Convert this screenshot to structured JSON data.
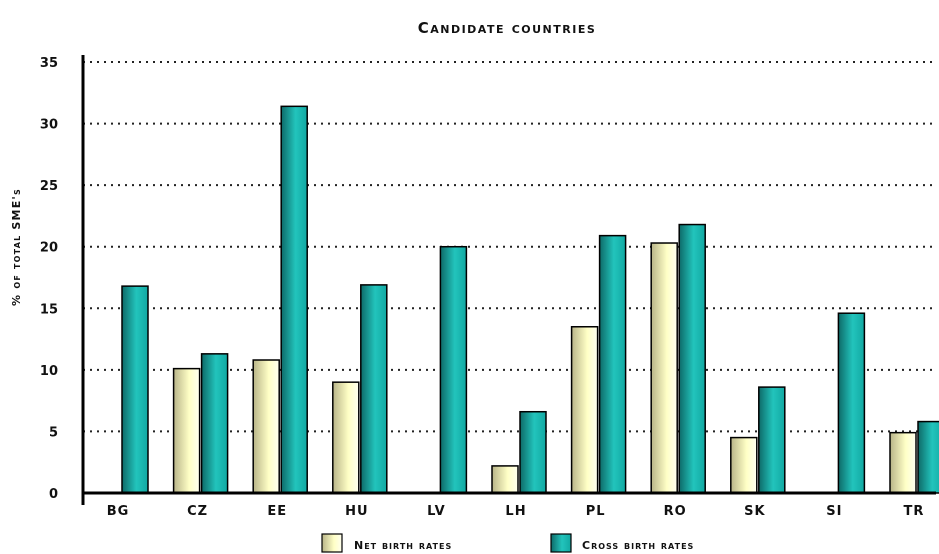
{
  "chart_data": {
    "type": "bar",
    "title": "Candidate countries",
    "ylabel": "% of total SME's",
    "xlabel": "",
    "ylim": [
      0,
      35
    ],
    "yticks": [
      0,
      5,
      10,
      15,
      20,
      25,
      30,
      35
    ],
    "categories": [
      "BG",
      "CZ",
      "EE",
      "HU",
      "LV",
      "LH",
      "PL",
      "RO",
      "SK",
      "SI",
      "TR"
    ],
    "series": [
      {
        "name": "Net birth rates",
        "color": "#ffffc0",
        "values": [
          null,
          10.1,
          10.8,
          9.0,
          null,
          2.2,
          13.5,
          20.3,
          4.5,
          null,
          4.9
        ]
      },
      {
        "name": "Cross birth rates",
        "color": "#1ab8b0",
        "values": [
          16.8,
          11.3,
          31.4,
          16.9,
          20.0,
          6.6,
          20.9,
          21.8,
          8.6,
          14.6,
          5.8
        ]
      }
    ],
    "grid": true,
    "legend": "bottom"
  }
}
